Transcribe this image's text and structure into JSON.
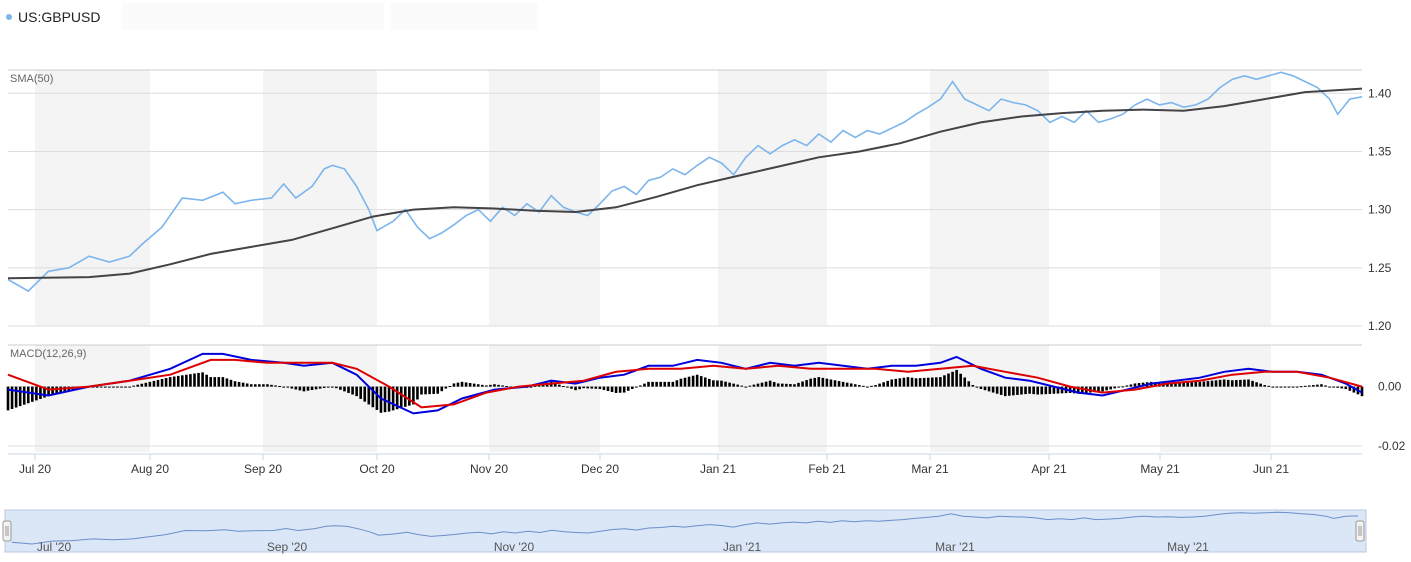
{
  "legend": {
    "label": "US:GBPUSD",
    "dot_color": "#7cb5ec"
  },
  "chart_data": {
    "type": "line",
    "symbol": "US:GBPUSD",
    "panels": [
      {
        "name": "price",
        "label": "SMA(50)",
        "ylim": [
          1.2,
          1.42
        ],
        "yticks": [
          "1.20",
          "1.25",
          "1.30",
          "1.35",
          "1.40"
        ],
        "grid": true,
        "series": [
          {
            "role": "price",
            "color": "#7cb5ec",
            "points": [
              [
                0,
                1.24
              ],
              [
                5,
                1.23
              ],
              [
                10,
                1.247
              ],
              [
                15,
                1.25
              ],
              [
                20,
                1.26
              ],
              [
                25,
                1.255
              ],
              [
                30,
                1.26
              ],
              [
                33,
                1.27
              ],
              [
                38,
                1.285
              ],
              [
                43,
                1.31
              ],
              [
                48,
                1.308
              ],
              [
                53,
                1.315
              ],
              [
                56,
                1.305
              ],
              [
                60,
                1.308
              ],
              [
                65,
                1.31
              ],
              [
                68,
                1.322
              ],
              [
                71,
                1.31
              ],
              [
                75,
                1.32
              ],
              [
                78,
                1.335
              ],
              [
                80,
                1.338
              ],
              [
                83,
                1.335
              ],
              [
                86,
                1.32
              ],
              [
                89,
                1.3
              ],
              [
                91,
                1.282
              ],
              [
                95,
                1.29
              ],
              [
                98,
                1.3
              ],
              [
                101,
                1.285
              ],
              [
                104,
                1.275
              ],
              [
                107,
                1.28
              ],
              [
                110,
                1.287
              ],
              [
                113,
                1.295
              ],
              [
                116,
                1.3
              ],
              [
                119,
                1.29
              ],
              [
                122,
                1.302
              ],
              [
                125,
                1.295
              ],
              [
                128,
                1.305
              ],
              [
                131,
                1.298
              ],
              [
                134,
                1.312
              ],
              [
                137,
                1.302
              ],
              [
                140,
                1.298
              ],
              [
                143,
                1.295
              ],
              [
                146,
                1.305
              ],
              [
                149,
                1.316
              ],
              [
                152,
                1.32
              ],
              [
                155,
                1.313
              ],
              [
                158,
                1.325
              ],
              [
                161,
                1.328
              ],
              [
                164,
                1.335
              ],
              [
                167,
                1.33
              ],
              [
                170,
                1.338
              ],
              [
                173,
                1.345
              ],
              [
                176,
                1.34
              ],
              [
                179,
                1.33
              ],
              [
                182,
                1.345
              ],
              [
                185,
                1.355
              ],
              [
                188,
                1.348
              ],
              [
                191,
                1.355
              ],
              [
                194,
                1.36
              ],
              [
                197,
                1.355
              ],
              [
                200,
                1.365
              ],
              [
                203,
                1.358
              ],
              [
                206,
                1.368
              ],
              [
                209,
                1.362
              ],
              [
                212,
                1.368
              ],
              [
                215,
                1.365
              ],
              [
                218,
                1.37
              ],
              [
                221,
                1.375
              ],
              [
                224,
                1.382
              ],
              [
                227,
                1.388
              ],
              [
                230,
                1.395
              ],
              [
                233,
                1.41
              ],
              [
                236,
                1.395
              ],
              [
                239,
                1.39
              ],
              [
                242,
                1.385
              ],
              [
                245,
                1.395
              ],
              [
                248,
                1.392
              ],
              [
                251,
                1.39
              ],
              [
                254,
                1.385
              ],
              [
                257,
                1.375
              ],
              [
                260,
                1.38
              ],
              [
                263,
                1.375
              ],
              [
                266,
                1.385
              ],
              [
                269,
                1.375
              ],
              [
                272,
                1.378
              ],
              [
                275,
                1.382
              ],
              [
                278,
                1.39
              ],
              [
                281,
                1.395
              ],
              [
                284,
                1.39
              ],
              [
                287,
                1.392
              ],
              [
                290,
                1.388
              ],
              [
                293,
                1.39
              ],
              [
                296,
                1.395
              ],
              [
                299,
                1.405
              ],
              [
                302,
                1.412
              ],
              [
                305,
                1.415
              ],
              [
                308,
                1.412
              ],
              [
                311,
                1.415
              ],
              [
                314,
                1.418
              ],
              [
                317,
                1.415
              ],
              [
                320,
                1.41
              ],
              [
                323,
                1.405
              ],
              [
                326,
                1.395
              ],
              [
                328,
                1.382
              ],
              [
                331,
                1.395
              ],
              [
                334,
                1.397
              ]
            ]
          },
          {
            "role": "SMA(50)",
            "color": "#434348",
            "points": [
              [
                0,
                1.241
              ],
              [
                20,
                1.242
              ],
              [
                30,
                1.245
              ],
              [
                40,
                1.253
              ],
              [
                50,
                1.262
              ],
              [
                60,
                1.268
              ],
              [
                70,
                1.274
              ],
              [
                80,
                1.284
              ],
              [
                90,
                1.294
              ],
              [
                100,
                1.3
              ],
              [
                110,
                1.302
              ],
              [
                120,
                1.301
              ],
              [
                130,
                1.299
              ],
              [
                140,
                1.298
              ],
              [
                150,
                1.302
              ],
              [
                160,
                1.311
              ],
              [
                170,
                1.321
              ],
              [
                180,
                1.329
              ],
              [
                190,
                1.337
              ],
              [
                200,
                1.345
              ],
              [
                210,
                1.35
              ],
              [
                220,
                1.357
              ],
              [
                230,
                1.367
              ],
              [
                240,
                1.375
              ],
              [
                250,
                1.38
              ],
              [
                260,
                1.383
              ],
              [
                270,
                1.385
              ],
              [
                280,
                1.386
              ],
              [
                290,
                1.385
              ],
              [
                300,
                1.389
              ],
              [
                310,
                1.395
              ],
              [
                320,
                1.401
              ],
              [
                334,
                1.404
              ]
            ]
          }
        ]
      },
      {
        "name": "macd",
        "label": "MACD(12,26,9)",
        "ylim": [
          -0.022,
          0.014
        ],
        "yticks": [
          "0.00",
          "-0.02"
        ],
        "grid": true,
        "series": [
          {
            "role": "MACD",
            "color": "#0000dd",
            "points": [
              [
                0,
                -0.001
              ],
              [
                10,
                -0.003
              ],
              [
                20,
                0.0
              ],
              [
                30,
                0.002
              ],
              [
                40,
                0.006
              ],
              [
                48,
                0.011
              ],
              [
                53,
                0.011
              ],
              [
                60,
                0.009
              ],
              [
                68,
                0.008
              ],
              [
                73,
                0.007
              ],
              [
                80,
                0.008
              ],
              [
                86,
                0.004
              ],
              [
                92,
                -0.004
              ],
              [
                100,
                -0.009
              ],
              [
                106,
                -0.008
              ],
              [
                112,
                -0.004
              ],
              [
                120,
                -0.001
              ],
              [
                128,
                0.0
              ],
              [
                134,
                0.002
              ],
              [
                140,
                0.001
              ],
              [
                146,
                0.003
              ],
              [
                152,
                0.004
              ],
              [
                158,
                0.007
              ],
              [
                164,
                0.007
              ],
              [
                170,
                0.009
              ],
              [
                176,
                0.008
              ],
              [
                182,
                0.006
              ],
              [
                188,
                0.008
              ],
              [
                194,
                0.007
              ],
              [
                200,
                0.008
              ],
              [
                206,
                0.007
              ],
              [
                212,
                0.006
              ],
              [
                218,
                0.007
              ],
              [
                224,
                0.007
              ],
              [
                230,
                0.008
              ],
              [
                234,
                0.01
              ],
              [
                240,
                0.006
              ],
              [
                246,
                0.003
              ],
              [
                252,
                0.002
              ],
              [
                258,
                0.0
              ],
              [
                264,
                -0.002
              ],
              [
                270,
                -0.003
              ],
              [
                276,
                -0.001
              ],
              [
                282,
                0.001
              ],
              [
                288,
                0.002
              ],
              [
                294,
                0.003
              ],
              [
                300,
                0.005
              ],
              [
                306,
                0.006
              ],
              [
                312,
                0.005
              ],
              [
                318,
                0.005
              ],
              [
                324,
                0.004
              ],
              [
                330,
                0.001
              ],
              [
                334,
                -0.002
              ]
            ]
          },
          {
            "role": "Signal",
            "color": "#dd0000",
            "points": [
              [
                0,
                0.004
              ],
              [
                10,
                -0.001
              ],
              [
                20,
                0.0
              ],
              [
                30,
                0.002
              ],
              [
                40,
                0.004
              ],
              [
                50,
                0.009
              ],
              [
                56,
                0.009
              ],
              [
                64,
                0.008
              ],
              [
                72,
                0.008
              ],
              [
                80,
                0.008
              ],
              [
                86,
                0.006
              ],
              [
                94,
                0.0
              ],
              [
                102,
                -0.007
              ],
              [
                110,
                -0.006
              ],
              [
                118,
                -0.002
              ],
              [
                126,
                0.0
              ],
              [
                134,
                0.001
              ],
              [
                142,
                0.002
              ],
              [
                150,
                0.005
              ],
              [
                158,
                0.006
              ],
              [
                166,
                0.006
              ],
              [
                174,
                0.007
              ],
              [
                182,
                0.006
              ],
              [
                190,
                0.007
              ],
              [
                198,
                0.006
              ],
              [
                206,
                0.006
              ],
              [
                214,
                0.006
              ],
              [
                222,
                0.005
              ],
              [
                230,
                0.006
              ],
              [
                238,
                0.007
              ],
              [
                246,
                0.005
              ],
              [
                254,
                0.003
              ],
              [
                262,
                0.0
              ],
              [
                270,
                -0.002
              ],
              [
                278,
                -0.001
              ],
              [
                286,
                0.001
              ],
              [
                294,
                0.002
              ],
              [
                302,
                0.004
              ],
              [
                310,
                0.005
              ],
              [
                318,
                0.005
              ],
              [
                326,
                0.003
              ],
              [
                334,
                0.0
              ]
            ]
          }
        ]
      }
    ],
    "x_labels": [
      "Jul 20",
      "Aug 20",
      "Sep 20",
      "Oct 20",
      "Nov 20",
      "Dec 20",
      "Jan 21",
      "Feb 21",
      "Mar 21",
      "Apr 21",
      "May 21",
      "Jun 21"
    ],
    "navigator_labels": [
      "Jul '20",
      "Sep '20",
      "Nov '20",
      "Jan '21",
      "Mar '21",
      "May '21"
    ]
  }
}
